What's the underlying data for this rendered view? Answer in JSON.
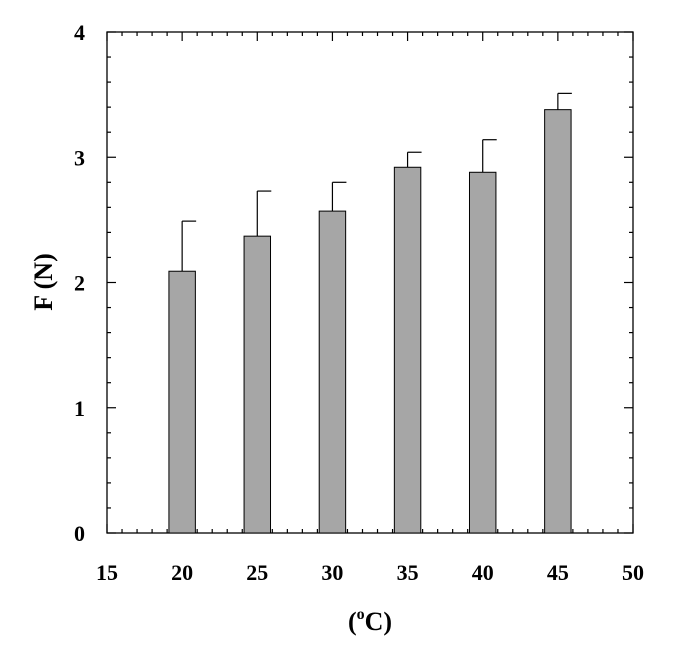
{
  "chart_data": {
    "type": "bar",
    "x": [
      20,
      25,
      30,
      35,
      40,
      45
    ],
    "values": [
      2.09,
      2.37,
      2.57,
      2.92,
      2.88,
      3.38
    ],
    "errors": [
      0.4,
      0.36,
      0.23,
      0.12,
      0.26,
      0.13
    ],
    "xlim": [
      15,
      50
    ],
    "ylim": [
      0,
      4
    ],
    "xticks": [
      "15",
      "20",
      "25",
      "30",
      "35",
      "40",
      "45",
      "50"
    ],
    "yticks": [
      "0",
      "1",
      "2",
      "3",
      "4"
    ],
    "xlabel_prefix": "(",
    "xlabel_sup": "o",
    "xlabel_suffix": "C)",
    "ylabel": "F (N)",
    "bar_color": "#a6a6a6",
    "grid": false
  }
}
